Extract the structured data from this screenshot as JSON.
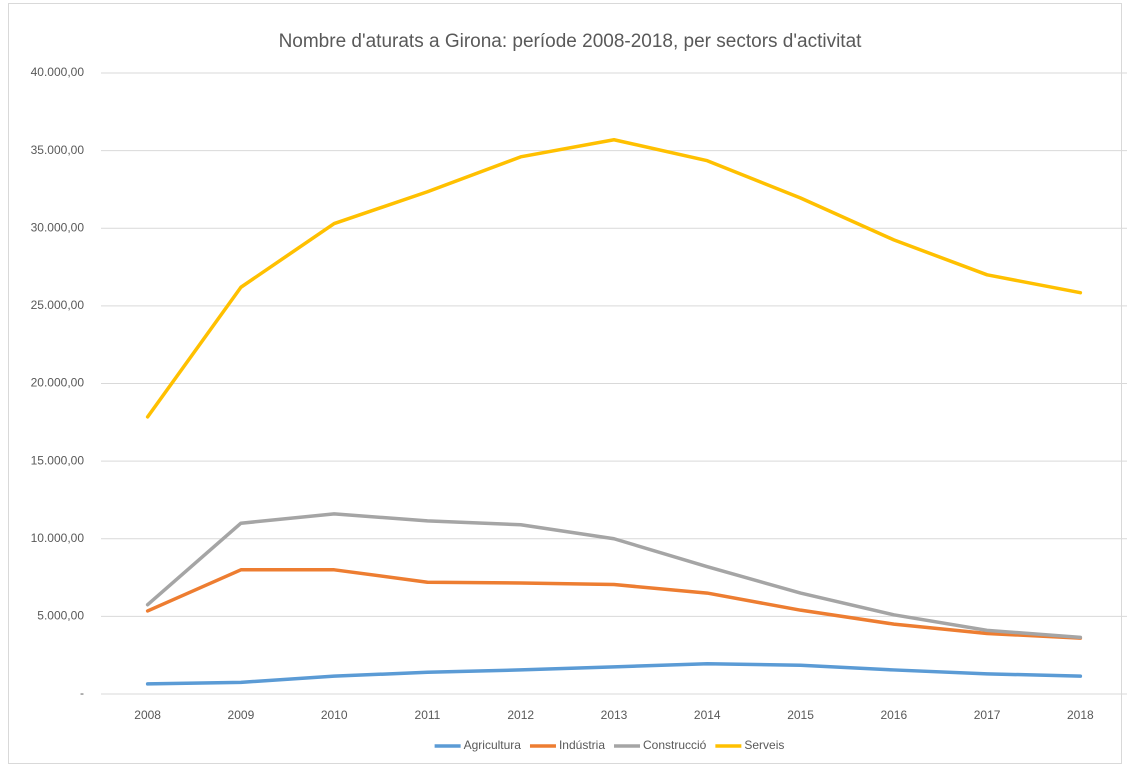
{
  "chart_data": {
    "type": "line",
    "title": "Nombre d'aturats a Girona: període 2008-2018, per sectors d'activitat",
    "categories": [
      "2008",
      "2009",
      "2010",
      "2011",
      "2012",
      "2013",
      "2014",
      "2015",
      "2016",
      "2017",
      "2018"
    ],
    "series": [
      {
        "name": "Agricultura",
        "color": "#5b9bd5",
        "values": [
          650,
          750,
          1150,
          1400,
          1550,
          1750,
          1950,
          1850,
          1550,
          1300,
          1150
        ]
      },
      {
        "name": "Indústria",
        "color": "#ed7d31",
        "values": [
          5350,
          8000,
          8000,
          7200,
          7150,
          7050,
          6500,
          5400,
          4500,
          3900,
          3600
        ]
      },
      {
        "name": "Construcció",
        "color": "#a5a5a5",
        "values": [
          5750,
          11000,
          11600,
          11150,
          10900,
          10000,
          8200,
          6500,
          5100,
          4100,
          3650
        ]
      },
      {
        "name": "Serveis",
        "color": "#ffc000",
        "values": [
          17850,
          26200,
          30300,
          32350,
          34600,
          35700,
          34350,
          31950,
          29250,
          27000,
          25850
        ]
      }
    ],
    "ylim": [
      0,
      40000
    ],
    "yticks": [
      {
        "value": 0,
        "label": "-"
      },
      {
        "value": 5000,
        "label": "5.000,00"
      },
      {
        "value": 10000,
        "label": "10.000,00"
      },
      {
        "value": 15000,
        "label": "15.000,00"
      },
      {
        "value": 20000,
        "label": "20.000,00"
      },
      {
        "value": 25000,
        "label": "25.000,00"
      },
      {
        "value": 30000,
        "label": "30.000,00"
      },
      {
        "value": 35000,
        "label": "35.000,00"
      },
      {
        "value": 40000,
        "label": "40.000,00"
      }
    ],
    "grid": true,
    "legend": "bottom"
  }
}
